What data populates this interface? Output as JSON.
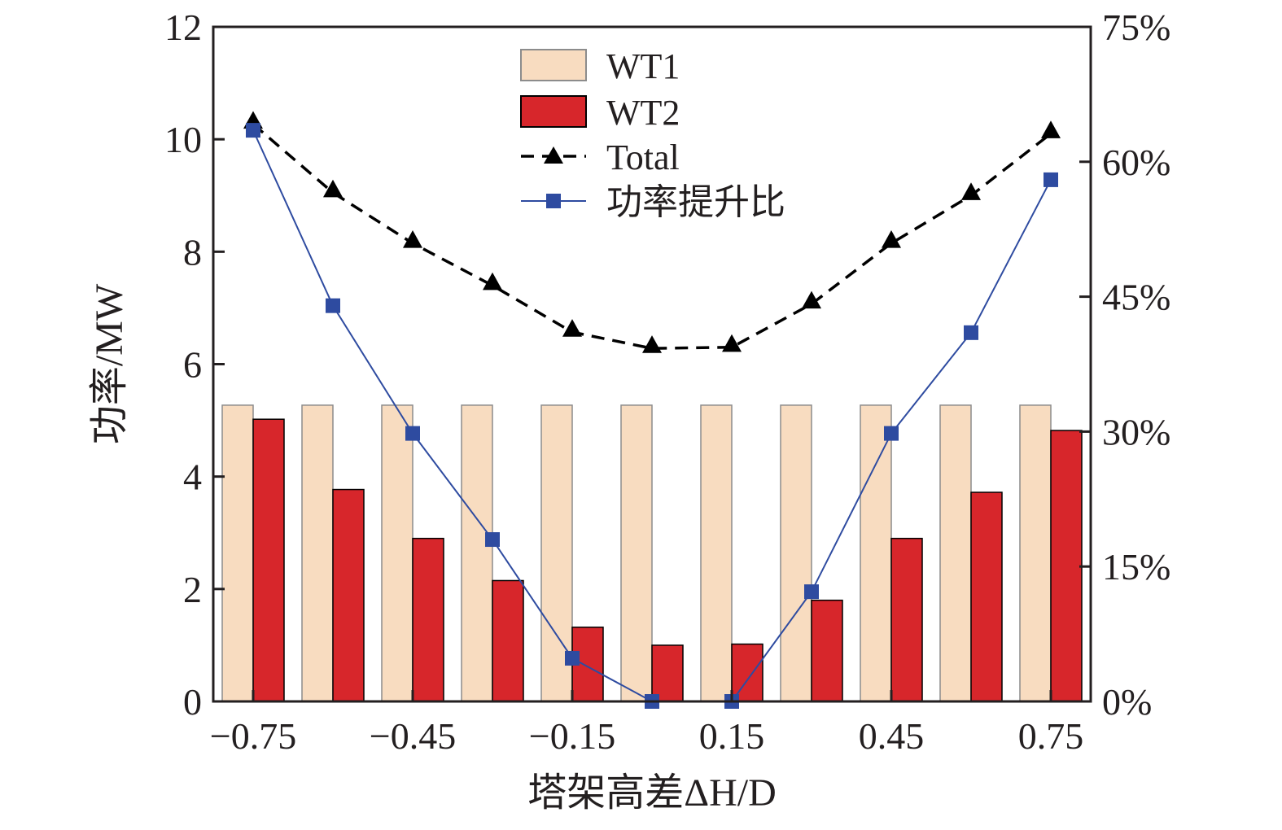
{
  "chart_data": {
    "type": "bar",
    "x": [
      -0.75,
      -0.6,
      -0.45,
      -0.3,
      -0.15,
      0,
      0.15,
      0.3,
      0.45,
      0.6,
      0.75
    ],
    "x_tick_labels": [
      "−0.75",
      "−0.45",
      "−0.15",
      "0.15",
      "0.45",
      "0.75"
    ],
    "x_tick_values": [
      -0.75,
      -0.45,
      -0.15,
      0.15,
      0.45,
      0.75
    ],
    "xlabel": "塔架高差ΔH/D",
    "ylabel": "功率/MW",
    "ylim": [
      0,
      12
    ],
    "y_ticks": [
      0,
      2,
      4,
      6,
      8,
      10,
      12
    ],
    "y2lim": [
      0,
      75
    ],
    "y2_ticks": [
      0,
      15,
      30,
      45,
      60,
      75
    ],
    "y2_tick_labels": [
      "0%",
      "15%",
      "30%",
      "45%",
      "60%",
      "75%"
    ],
    "legend_position": "top-center",
    "series": [
      {
        "name": "WT1",
        "kind": "bar",
        "axis": "left",
        "color": "#f8dcc0",
        "values": [
          5.27,
          5.27,
          5.27,
          5.27,
          5.27,
          5.27,
          5.27,
          5.27,
          5.27,
          5.27,
          5.27
        ]
      },
      {
        "name": "WT2",
        "kind": "bar",
        "axis": "left",
        "color": "#d7262b",
        "values": [
          5.02,
          3.77,
          2.9,
          2.15,
          1.32,
          1.0,
          1.02,
          1.8,
          2.9,
          3.72,
          4.82
        ]
      },
      {
        "name": "Total",
        "kind": "line",
        "style": "dashed",
        "marker": "triangle",
        "axis": "left",
        "color": "#000000",
        "values": [
          10.27,
          9.05,
          8.15,
          7.4,
          6.57,
          6.28,
          6.3,
          7.07,
          8.15,
          9.0,
          10.1
        ]
      },
      {
        "name": "功率提升比",
        "kind": "line",
        "marker": "square",
        "axis": "right",
        "color": "#2e4ba0",
        "values": [
          63.5,
          44.0,
          29.8,
          18.0,
          4.8,
          0.0,
          0.0,
          12.2,
          29.8,
          41.0,
          58.0
        ]
      }
    ]
  }
}
